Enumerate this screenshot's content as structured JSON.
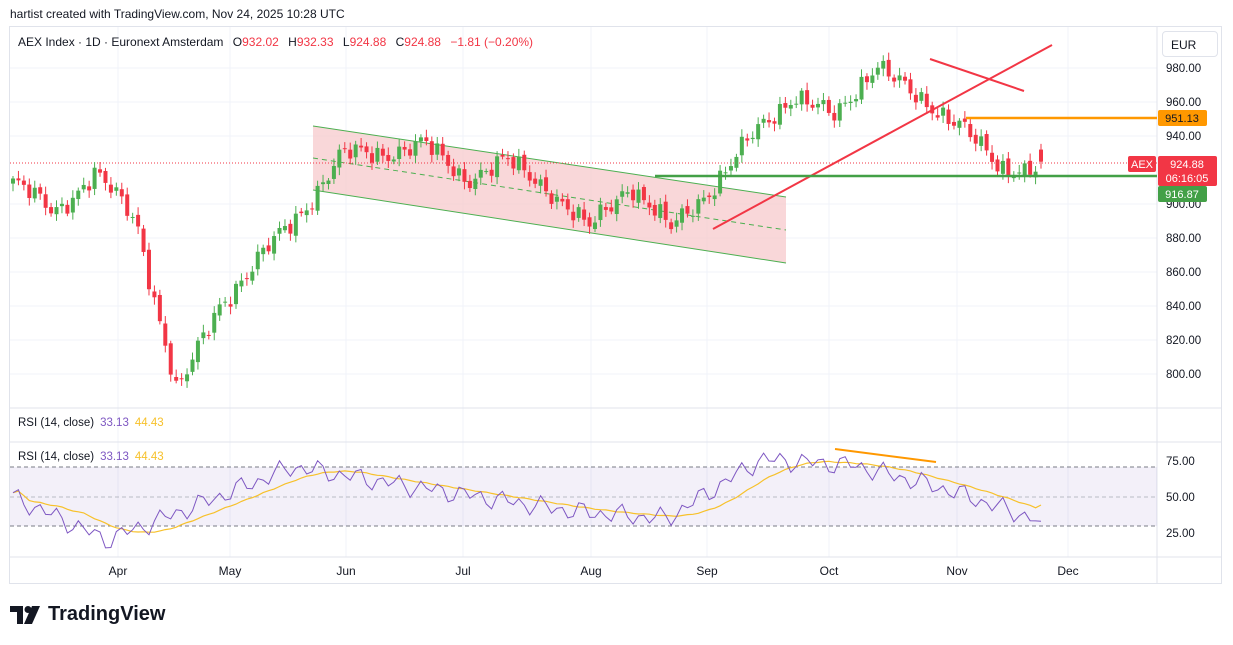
{
  "header": {
    "text": "hartist created with TradingView.com, Nov 24, 2025 10:28 UTC"
  },
  "legend": {
    "symbol": "AEX Index · 1D · Euronext Amsterdam",
    "open_key": "O",
    "open": "932.02",
    "high_key": "H",
    "high": "932.33",
    "low_key": "L",
    "low": "924.88",
    "close_key": "C",
    "close": "924.88",
    "change": "−1.81 (−0.20%)"
  },
  "currency": "EUR",
  "rsi_panels": [
    {
      "label": "RSI (14, close)",
      "rsi_value": "33.13",
      "ma_value": "44.43"
    },
    {
      "label": "RSI (14, close)",
      "rsi_value": "33.13",
      "ma_value": "44.43"
    }
  ],
  "price_axis": {
    "ticks": [
      "980.00",
      "960.00",
      "940.00",
      "900.00",
      "880.00",
      "860.00",
      "840.00",
      "820.00",
      "800.00"
    ]
  },
  "rsi_axis": {
    "ticks": [
      "75.00",
      "50.00",
      "25.00"
    ]
  },
  "price_labels": {
    "orange_level": "951.13",
    "last_symbol": "AEX",
    "last_price": "924.88",
    "countdown": "06:16:05",
    "green_level": "916.87"
  },
  "time_axis": {
    "ticks": [
      "Apr",
      "May",
      "Jun",
      "Jul",
      "Aug",
      "Sep",
      "Oct",
      "Nov",
      "Dec"
    ]
  },
  "brand": "TradingView",
  "colors": {
    "up": "#4caf50",
    "down": "#f23645",
    "rsi": "#7e57c2",
    "rsi_ma": "#f7c12b",
    "orange": "#ff9800",
    "green": "#43a047"
  },
  "chart_data": {
    "type": "candlestick",
    "title": "AEX Index · 1D · Euronext Amsterdam",
    "currency": "EUR",
    "x_ticks": [
      "Apr",
      "May",
      "Jun",
      "Jul",
      "Aug",
      "Sep",
      "Oct",
      "Nov",
      "Dec"
    ],
    "y_ticks": [
      980,
      960,
      940,
      900,
      880,
      860,
      840,
      820,
      800
    ],
    "key_points": [
      {
        "x": "Mar (start)",
        "y": 913
      },
      {
        "x": "Mar mid",
        "y": 895
      },
      {
        "x": "Mar late",
        "y": 918
      },
      {
        "x": "Apr early",
        "y": 890
      },
      {
        "x": "Apr 7",
        "y": 788
      },
      {
        "x": "Apr 10",
        "y": 840
      },
      {
        "x": "Apr late",
        "y": 868
      },
      {
        "x": "May",
        "y": 895
      },
      {
        "x": "May late",
        "y": 929
      },
      {
        "x": "Jun",
        "y": 930
      },
      {
        "x": "Jun mid",
        "y": 935
      },
      {
        "x": "Jul",
        "y": 915
      },
      {
        "x": "Jul mid",
        "y": 925
      },
      {
        "x": "Aug",
        "y": 910
      },
      {
        "x": "Aug mid",
        "y": 885
      },
      {
        "x": "Aug late",
        "y": 912
      },
      {
        "x": "Sep 1",
        "y": 885
      },
      {
        "x": "Sep mid",
        "y": 910
      },
      {
        "x": "Sep late",
        "y": 940
      },
      {
        "x": "Oct",
        "y": 965
      },
      {
        "x": "Oct mid",
        "y": 950
      },
      {
        "x": "Oct late",
        "y": 984
      },
      {
        "x": "Nov",
        "y": 960
      },
      {
        "x": "Nov mid",
        "y": 950
      },
      {
        "x": "Nov 21",
        "y": 918
      },
      {
        "x": "Nov 24",
        "y": 924.88
      }
    ],
    "last": {
      "open": 932.02,
      "high": 932.33,
      "low": 924.88,
      "close": 924.88,
      "change": -1.81,
      "change_pct": -0.2
    },
    "horizontal_levels": [
      {
        "value": 951.13,
        "color": "orange"
      },
      {
        "value": 916.87,
        "color": "green"
      }
    ],
    "rsi": {
      "period": 14,
      "value": 33.13,
      "ma_value": 44.43,
      "band": [
        30,
        70
      ],
      "y_ticks": [
        75,
        50,
        25
      ],
      "key_points": [
        {
          "x": "Mar",
          "y": 50
        },
        {
          "x": "Apr 7",
          "y": 20
        },
        {
          "x": "Apr late",
          "y": 45
        },
        {
          "x": "May late",
          "y": 71
        },
        {
          "x": "Jun",
          "y": 60
        },
        {
          "x": "Jul",
          "y": 50
        },
        {
          "x": "Aug",
          "y": 40
        },
        {
          "x": "Sep",
          "y": 35
        },
        {
          "x": "Oct",
          "y": 76
        },
        {
          "x": "Oct late",
          "y": 72
        },
        {
          "x": "Nov",
          "y": 55
        },
        {
          "x": "Nov 24",
          "y": 33.13
        }
      ]
    }
  }
}
